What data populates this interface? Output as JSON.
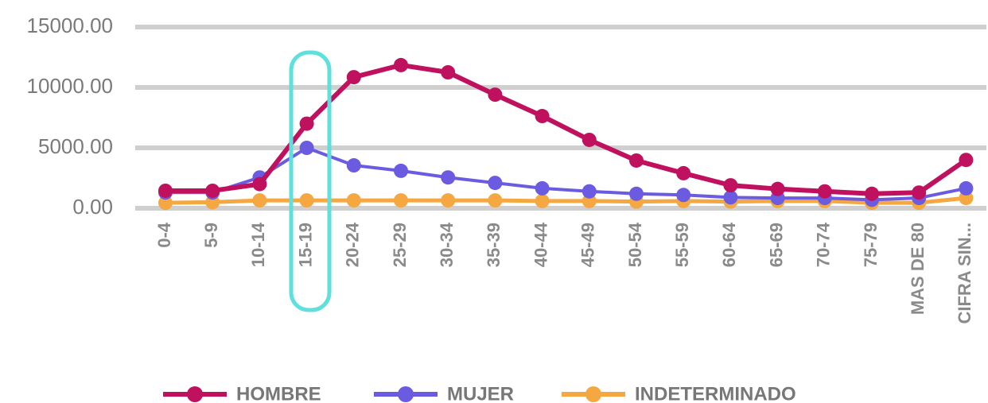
{
  "chart_data": {
    "type": "line",
    "categories": [
      "0-4",
      "5-9",
      "10-14",
      "15-19",
      "20-24",
      "25-29",
      "30-34",
      "35-39",
      "40-44",
      "45-49",
      "50-54",
      "55-59",
      "60-64",
      "65-69",
      "70-74",
      "75-79",
      "MAS DE 80",
      "CIFRA SIN..."
    ],
    "series": [
      {
        "name": "HOMBRE",
        "color": "#c0115f",
        "values": [
          1450,
          1450,
          2000,
          7000,
          10850,
          11850,
          11250,
          9400,
          7630,
          5660,
          3950,
          2900,
          1900,
          1600,
          1400,
          1200,
          1300,
          4000
        ]
      },
      {
        "name": "MUJER",
        "color": "#6b5be0",
        "values": [
          1300,
          1300,
          2550,
          5000,
          3550,
          3100,
          2550,
          2100,
          1650,
          1400,
          1200,
          1100,
          900,
          850,
          850,
          700,
          850,
          1650
        ]
      },
      {
        "name": "INDETERMINADO",
        "color": "#f5a742",
        "values": [
          450,
          500,
          650,
          650,
          650,
          650,
          650,
          650,
          600,
          600,
          550,
          600,
          550,
          600,
          600,
          450,
          450,
          850
        ]
      }
    ],
    "ylim": [
      0,
      15000
    ],
    "yticks": [
      {
        "value": 0,
        "label": "0.00"
      },
      {
        "value": 5000,
        "label": "5000.00"
      },
      {
        "value": 10000,
        "label": "10000.00"
      },
      {
        "value": 15000,
        "label": "15000.00"
      }
    ],
    "grid": true,
    "legend": "bottom"
  }
}
